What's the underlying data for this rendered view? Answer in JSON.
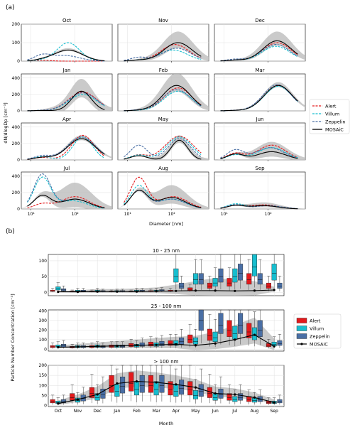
{
  "panel_labels": [
    "(a)",
    "(b)"
  ],
  "colors": {
    "Alert": "#e31a1c",
    "Villum": "#17becf",
    "Zeppelin": "#4a6fa5",
    "MOSAiC": "#000000",
    "range": "#bdbdbd"
  },
  "chart_data": [
    {
      "type": "line",
      "panel": "(a)",
      "xlabel": "Diameter [nm]",
      "ylabel": "dN/dlogDp [cm⁻³]",
      "xscale": "log",
      "xlim": [
        6,
        700
      ],
      "xticks": [
        10,
        100
      ],
      "xtick_labels": [
        "10¹",
        "10²"
      ],
      "grid": true,
      "legend": {
        "position": "right",
        "entries": [
          "Alert",
          "Villum",
          "Zeppelin",
          "MOSAiC"
        ]
      },
      "panels": [
        {
          "title": "Oct",
          "ylim": [
            0,
            200
          ],
          "yticks": [
            0,
            100,
            200
          ],
          "alert": [
            5,
            60,
            0,
            0
          ],
          "villum": [
            5,
            70,
            100,
            0.8
          ],
          "zeppelin": [
            30,
            60,
            30,
            0
          ],
          "mosaic": [
            5,
            70,
            60,
            0
          ],
          "range": [
            10,
            0,
            0
          ]
        },
        {
          "title": "Nov",
          "ylim": [
            0,
            200
          ],
          "yticks": [
            0,
            100,
            200
          ],
          "alert": [
            5,
            120,
            90,
            0
          ],
          "villum": [
            5,
            110,
            60,
            0
          ],
          "zeppelin": [
            20,
            130,
            70,
            0
          ],
          "mosaic": [
            5,
            140,
            100,
            0
          ],
          "range": [
            60,
            0,
            0
          ]
        },
        {
          "title": "Dec",
          "ylim": [
            0,
            200
          ],
          "yticks": [
            0,
            100,
            200
          ],
          "alert": [
            5,
            160,
            100,
            0
          ],
          "villum": [
            5,
            150,
            80,
            0
          ],
          "zeppelin": [
            10,
            150,
            90,
            0
          ],
          "mosaic": [
            5,
            160,
            110,
            0
          ],
          "range": [
            50,
            0,
            0
          ]
        },
        {
          "title": "Jan",
          "ylim": [
            0,
            450
          ],
          "yticks": [
            0,
            200,
            400
          ],
          "alert": [
            5,
            150,
            230,
            0
          ],
          "villum": [
            5,
            150,
            200,
            0
          ],
          "zeppelin": [
            5,
            150,
            220,
            0
          ],
          "mosaic": [
            5,
            140,
            240,
            0.7
          ],
          "range": [
            150,
            0,
            0
          ]
        },
        {
          "title": "Feb",
          "ylim": [
            0,
            450
          ],
          "yticks": [
            0,
            200,
            400
          ],
          "alert": [
            5,
            140,
            280,
            0
          ],
          "villum": [
            5,
            140,
            240,
            0
          ],
          "zeppelin": [
            10,
            130,
            260,
            0
          ],
          "mosaic": [
            5,
            130,
            310,
            0
          ],
          "range": [
            150,
            0,
            0
          ]
        },
        {
          "title": "Mar",
          "ylim": [
            0,
            450
          ],
          "yticks": [
            0,
            200,
            400
          ],
          "alert": [
            5,
            170,
            310,
            0
          ],
          "villum": [
            5,
            170,
            300,
            0
          ],
          "zeppelin": [
            5,
            160,
            320,
            0
          ],
          "mosaic": [
            5,
            170,
            310,
            0
          ],
          "range": [
            40,
            0,
            0
          ]
        },
        {
          "title": "Apr",
          "ylim": [
            0,
            450
          ],
          "yticks": [
            0,
            200,
            400
          ],
          "alert": [
            30,
            150,
            300,
            0.8
          ],
          "villum": [
            40,
            150,
            280,
            0.7
          ],
          "zeppelin": [
            50,
            140,
            280,
            0
          ],
          "mosaic": [
            30,
            140,
            260,
            0
          ],
          "range": [
            40,
            0,
            0
          ]
        },
        {
          "title": "May",
          "ylim": [
            0,
            450
          ],
          "yticks": [
            0,
            200,
            400
          ],
          "alert": [
            60,
            150,
            290,
            1.0
          ],
          "villum": [
            60,
            150,
            280,
            0.9
          ],
          "zeppelin": [
            180,
            150,
            260,
            0.8
          ],
          "mosaic": [
            50,
            150,
            240,
            0.6
          ],
          "range": [
            60,
            0,
            0
          ]
        },
        {
          "title": "Jun",
          "ylim": [
            0,
            450
          ],
          "yticks": [
            0,
            200,
            400
          ],
          "alert": [
            80,
            120,
            180,
            0
          ],
          "villum": [
            60,
            120,
            150,
            0
          ],
          "zeppelin": [
            120,
            110,
            150,
            0
          ],
          "mosaic": [
            70,
            120,
            100,
            0
          ],
          "range": [
            120,
            0,
            0
          ]
        },
        {
          "title": "Jul",
          "ylim": [
            0,
            450
          ],
          "yticks": [
            0,
            200,
            400
          ],
          "alert": [
            60,
            100,
            150,
            0
          ],
          "villum": [
            380,
            90,
            100,
            0
          ],
          "zeppelin": [
            420,
            100,
            120,
            0
          ],
          "mosaic": [
            160,
            100,
            120,
            0
          ],
          "range": [
            200,
            0,
            0
          ]
        },
        {
          "title": "Aug",
          "ylim": [
            0,
            450
          ],
          "yticks": [
            0,
            200,
            400
          ],
          "alert": [
            380,
            110,
            150,
            0
          ],
          "villum": [
            280,
            100,
            120,
            0
          ],
          "zeppelin": [
            220,
            100,
            120,
            0
          ],
          "mosaic": [
            220,
            100,
            140,
            0
          ],
          "range": [
            150,
            0,
            0
          ]
        },
        {
          "title": "Sep",
          "ylim": [
            0,
            450
          ],
          "yticks": [
            0,
            200,
            400
          ],
          "alert": [
            40,
            80,
            50,
            0
          ],
          "villum": [
            60,
            90,
            40,
            0
          ],
          "zeppelin": [
            50,
            100,
            40,
            0
          ],
          "mosaic": [
            40,
            80,
            40,
            0
          ],
          "range": [
            40,
            0,
            0
          ]
        }
      ]
    },
    {
      "type": "box",
      "panel": "(b)",
      "xlabel": "Month",
      "ylabel": "Particle Number Concentration [cm⁻³]",
      "categories": [
        "Oct",
        "Nov",
        "Dec",
        "Jan",
        "Feb",
        "Mar",
        "Apr",
        "May",
        "Jun",
        "Jul",
        "Aug",
        "Sep"
      ],
      "series_names": [
        "Alert",
        "Villum",
        "Zeppelin"
      ],
      "line_name": "MOSAiC",
      "legend": {
        "position": "right",
        "entries": [
          "Alert",
          "Villum",
          "Zeppelin",
          "MOSAiC"
        ]
      },
      "grid": true,
      "panels": [
        {
          "title": "10 - 25 nm",
          "ylim": [
            -10,
            120
          ],
          "yticks": [
            0,
            50,
            100
          ],
          "mosaic": [
            2,
            2,
            3,
            3,
            3,
            4,
            5,
            6,
            6,
            5,
            6,
            8
          ],
          "range": [
            2,
            5,
            8,
            8,
            10,
            12,
            20,
            30,
            40,
            35,
            30,
            10
          ],
          "medians": {
            "Alert": [
              5,
              3,
              3,
              3,
              3,
              4,
              5,
              10,
              20,
              30,
              40,
              20
            ],
            "Villum": [
              12,
              5,
              5,
              4,
              5,
              5,
              50,
              40,
              30,
              50,
              80,
              60
            ],
            "Zeppelin": [
              8,
              5,
              4,
              4,
              5,
              6,
              20,
              40,
              50,
              60,
              40,
              20
            ]
          }
        },
        {
          "title": "25 - 100 nm",
          "ylim": [
            -20,
            410
          ],
          "yticks": [
            0,
            100,
            200,
            300,
            400
          ],
          "mosaic": [
            20,
            25,
            30,
            35,
            40,
            45,
            50,
            40,
            60,
            100,
            150,
            30
          ],
          "range": [
            20,
            30,
            40,
            50,
            60,
            70,
            80,
            100,
            120,
            150,
            180,
            80
          ],
          "medians": {
            "Alert": [
              25,
              20,
              25,
              30,
              40,
              50,
              60,
              100,
              140,
              200,
              180,
              40
            ],
            "Villum": [
              30,
              25,
              30,
              30,
              35,
              45,
              60,
              80,
              120,
              160,
              150,
              50
            ],
            "Zeppelin": [
              35,
              25,
              25,
              30,
              45,
              55,
              80,
              300,
              250,
              250,
              200,
              60
            ]
          }
        },
        {
          "title": "> 100 nm",
          "ylim": [
            -5,
            200
          ],
          "yticks": [
            0,
            50,
            100,
            150,
            200
          ],
          "mosaic": [
            10,
            30,
            55,
            110,
            120,
            115,
            105,
            90,
            60,
            55,
            40,
            15
          ],
          "range": [
            15,
            25,
            40,
            50,
            55,
            50,
            45,
            40,
            35,
            30,
            25,
            15
          ],
          "medians": {
            "Alert": [
              20,
              40,
              60,
              100,
              110,
              100,
              80,
              80,
              60,
              40,
              30,
              15
            ],
            "Villum": [
              15,
              25,
              40,
              70,
              80,
              80,
              70,
              50,
              40,
              30,
              25,
              15
            ],
            "Zeppelin": [
              20,
              35,
              55,
              95,
              100,
              100,
              85,
              70,
              55,
              40,
              30,
              20
            ]
          }
        }
      ]
    }
  ]
}
